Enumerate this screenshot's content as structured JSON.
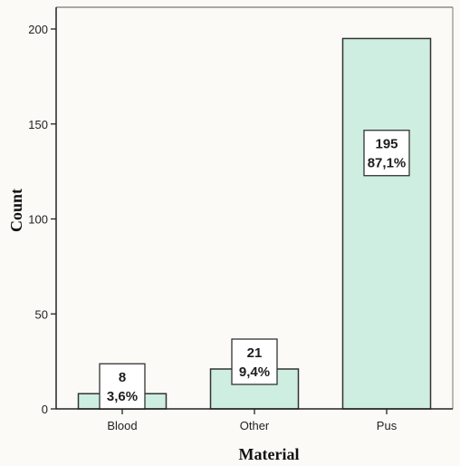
{
  "chart_data": {
    "type": "bar",
    "categories": [
      "Blood",
      "Other",
      "Pus"
    ],
    "values": [
      8,
      21,
      195
    ],
    "percent_labels": [
      "3,6%",
      "9,4%",
      "87,1%"
    ],
    "xlabel": "Material",
    "ylabel": "Count",
    "ylim": [
      0,
      210
    ],
    "yticks": [
      0,
      50,
      100,
      150,
      200
    ],
    "grid": false,
    "legend": "none",
    "bar_color": "#cdeee1",
    "bar_edge_color": "#333333"
  }
}
